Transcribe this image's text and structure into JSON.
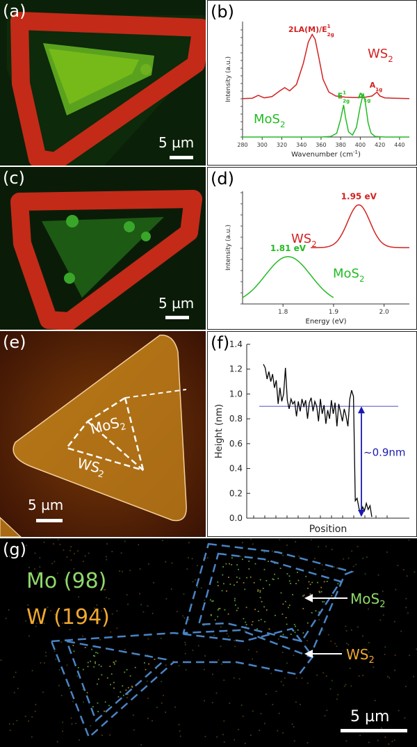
{
  "panels": {
    "a": {
      "label": "(a)",
      "scale_text": "5 µm"
    },
    "b": {
      "label": "(b)"
    },
    "c": {
      "label": "(c)",
      "scale_text": "5 µm"
    },
    "d": {
      "label": "(d)"
    },
    "e": {
      "label": "(e)",
      "scale_text": "5 µm",
      "mos2_label": "MoS",
      "mos2_sub": "2",
      "ws2_label": "WS",
      "ws2_sub": "2"
    },
    "f": {
      "label": "(f)"
    },
    "g": {
      "label": "(g)",
      "scale_text": "5 µm",
      "legend_mo": "Mo (98)",
      "legend_w": "W (194)",
      "mos2_label": "MoS",
      "mos2_sub": "2",
      "ws2_label": "WS",
      "ws2_sub": "2"
    }
  },
  "colors": {
    "ws2": "#d42020",
    "mos2": "#22bb22",
    "mo_legend": "#8fd96a",
    "w_legend": "#f0a830",
    "annotation": "#1a1ab0",
    "reference_line": "#8a8ad8"
  },
  "chart_data": [
    {
      "id": "b",
      "type": "line",
      "xlabel": "Wavenumber (cm",
      "xlabel_sup": "-1",
      "xlabel_end": ")",
      "ylabel": "Intensity (a.u.)",
      "xlim": [
        280,
        450
      ],
      "xticks": [
        280,
        300,
        320,
        340,
        360,
        380,
        400,
        420,
        440
      ],
      "series": [
        {
          "name": "WS",
          "name_sub": "2",
          "color": "#d42020",
          "offset": 0.6,
          "x": [
            280,
            290,
            296,
            302,
            310,
            318,
            323,
            328,
            335,
            342,
            347,
            351,
            354,
            358,
            362,
            368,
            375,
            385,
            395,
            405,
            412,
            417,
            420,
            425,
            435,
            450
          ],
          "y": [
            0,
            0.005,
            0.05,
            0.01,
            0.03,
            0.12,
            0.17,
            0.12,
            0.22,
            0.55,
            0.88,
            1.0,
            0.92,
            0.62,
            0.3,
            0.1,
            0.04,
            0.02,
            0.015,
            0.02,
            0.04,
            0.1,
            0.04,
            0.01,
            0.005,
            0
          ]
        },
        {
          "name": "MoS",
          "name_sub": "2",
          "color": "#22bb22",
          "offset": 0,
          "x": [
            280,
            360,
            370,
            376,
            380,
            383,
            385,
            388,
            392,
            396,
            400,
            403,
            405,
            408,
            411,
            415,
            425,
            450
          ],
          "y": [
            0,
            0,
            0.01,
            0.06,
            0.28,
            0.5,
            0.3,
            0.08,
            0.03,
            0.15,
            0.48,
            0.68,
            0.55,
            0.22,
            0.06,
            0.01,
            0,
            0
          ]
        }
      ],
      "annotations": [
        {
          "text": "2LA(M)/E",
          "sup": "1",
          "sub": "2g",
          "color": "#d42020",
          "x": 350,
          "y": 1.64
        },
        {
          "text": "A",
          "sub": "1g",
          "color": "#d42020",
          "x": 416,
          "y": 0.77
        },
        {
          "text": "E",
          "sup": "1",
          "sub": "2g",
          "color": "#22bb22",
          "x": 383,
          "y": 0.6
        },
        {
          "text": "A",
          "sub": "1g",
          "color": "#22bb22",
          "x": 404,
          "y": 0.6
        }
      ]
    },
    {
      "id": "d",
      "type": "line",
      "xlabel": "Energy (eV)",
      "ylabel": "Intensity (a.u.)",
      "xlim": [
        1.72,
        2.05
      ],
      "xticks": [
        1.8,
        1.9,
        2.0
      ],
      "xtick_labels": [
        "1.8",
        "1.9",
        "2.0"
      ],
      "series": [
        {
          "name": "WS",
          "name_sub": "2",
          "color": "#d42020",
          "center": 1.95,
          "width": 0.022,
          "height": 0.38,
          "offset": 0.5,
          "x_start": 1.855,
          "x_end": 2.05
        },
        {
          "name": "MoS",
          "name_sub": "2",
          "color": "#22bb22",
          "center": 1.81,
          "width": 0.045,
          "height": 0.42,
          "offset": 0,
          "x_start": 1.72,
          "x_end": 1.9
        }
      ],
      "annotations": [
        {
          "text": "1.95 eV",
          "color": "#d42020",
          "x": 1.95,
          "y": 0.93
        },
        {
          "text": "1.81 eV",
          "color": "#22bb22",
          "x": 1.81,
          "y": 0.47
        }
      ]
    },
    {
      "id": "f",
      "type": "line",
      "xlabel": "Position",
      "ylabel": "Height (nm)",
      "ylim": [
        0.0,
        1.4
      ],
      "yticks": [
        0.0,
        0.2,
        0.4,
        0.6,
        0.8,
        1.0,
        1.2,
        1.4
      ],
      "ytick_labels": [
        "0.0",
        "0.2",
        "0.4",
        "0.6",
        "0.8",
        "1.0",
        "1.2",
        "1.4"
      ],
      "reference_level": 0.9,
      "step_annotation": "~0.9nm",
      "series": [
        {
          "name": "",
          "color": "#000000",
          "x": [
            0,
            1,
            2,
            3,
            4,
            5,
            6,
            7,
            8,
            9,
            10,
            11,
            12,
            13,
            14,
            15,
            16,
            17,
            18,
            19,
            20,
            21,
            22,
            23,
            24,
            25,
            26,
            27,
            28,
            29,
            30,
            31,
            32,
            33,
            34,
            35,
            36,
            37,
            38,
            39,
            40,
            41,
            42,
            43,
            44,
            45,
            46,
            47,
            48,
            49,
            50,
            51,
            52,
            53,
            54,
            55,
            56,
            57,
            58,
            59
          ],
          "y": [
            1.24,
            1.21,
            1.12,
            1.18,
            1.1,
            1.16,
            1.05,
            1.11,
            0.92,
            1.05,
            0.94,
            1.0,
            1.21,
            0.95,
            0.88,
            0.96,
            0.92,
            0.94,
            0.82,
            0.94,
            0.86,
            0.96,
            0.9,
            0.95,
            0.8,
            0.93,
            0.97,
            0.86,
            0.94,
            0.9,
            0.78,
            0.96,
            0.84,
            0.91,
            0.76,
            0.87,
            0.8,
            0.95,
            0.84,
            0.93,
            0.74,
            0.92,
            0.85,
            0.78,
            0.88,
            0.82,
            0.74,
            0.96,
            1.03,
            0.98,
            0.14,
            0.16,
            0.08,
            0.03,
            0.09,
            0.06,
            0.12,
            0.07,
            0.1,
            0.01
          ]
        }
      ]
    }
  ]
}
